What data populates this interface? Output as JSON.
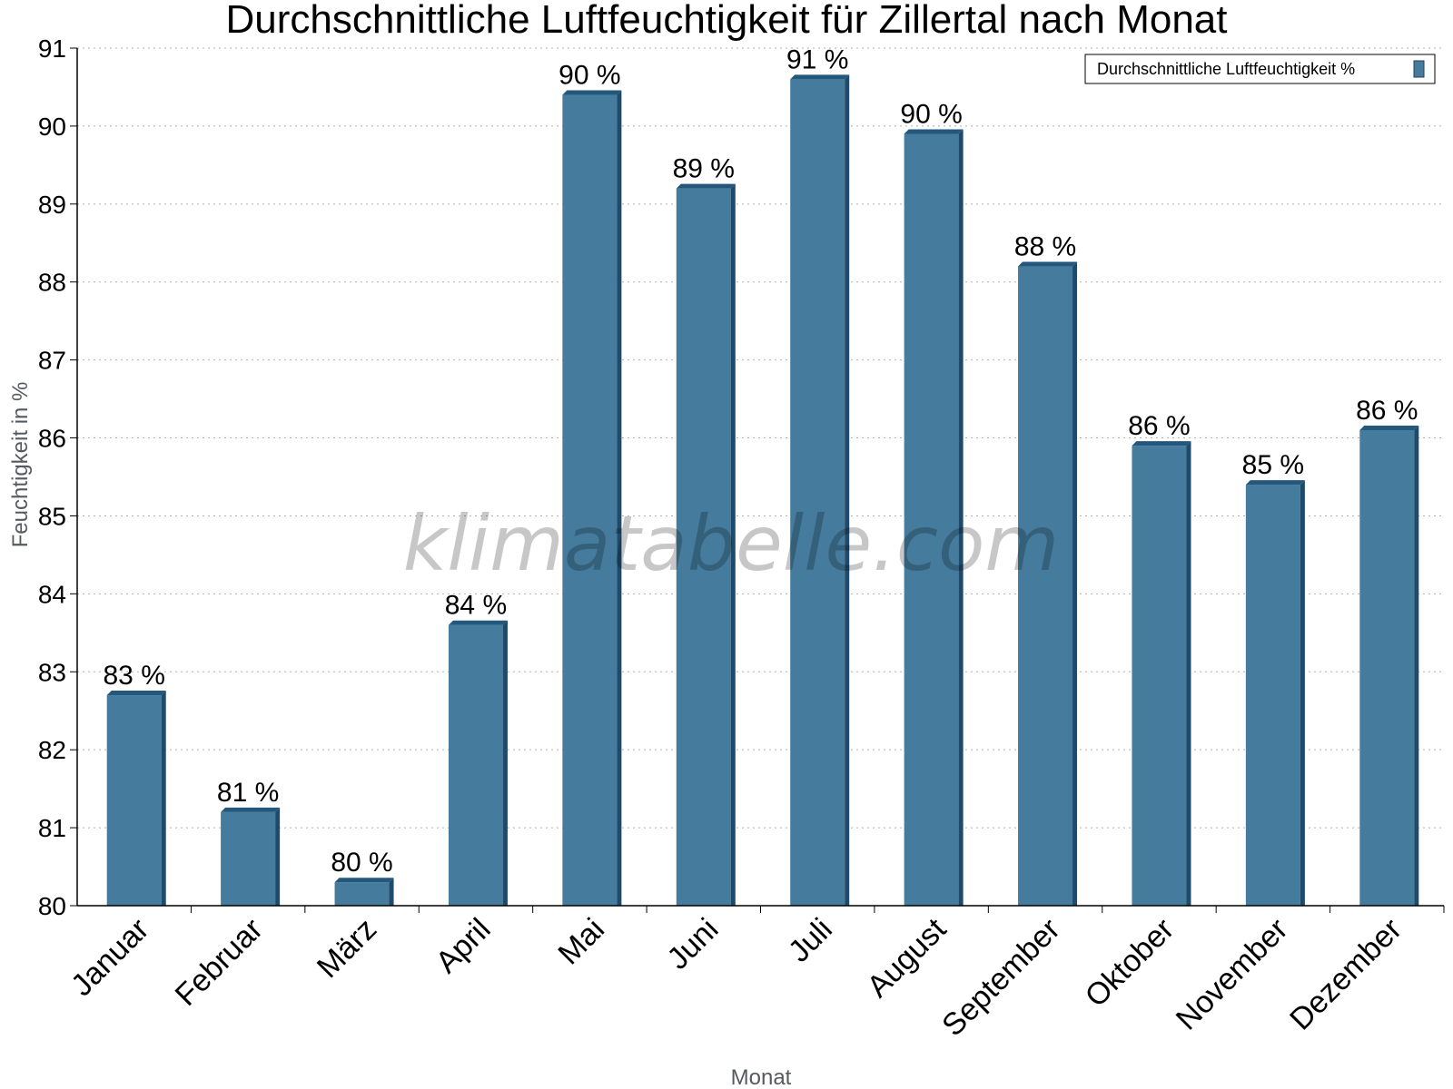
{
  "chart_data": {
    "type": "bar",
    "title": "Durchschnittliche Luftfeuchtigkeit für Zillertal nach Monat",
    "xlabel": "Monat",
    "ylabel": "Feuchtigkeit in %",
    "categories": [
      "Januar",
      "Februar",
      "März",
      "April",
      "Mai",
      "Juni",
      "Juli",
      "August",
      "September",
      "Oktober",
      "November",
      "Dezember"
    ],
    "series": [
      {
        "name": "Durchschnittliche Luftfeuchtigkeit %",
        "color": "#457b9d",
        "values": [
          82.7,
          81.2,
          80.3,
          83.6,
          90.4,
          89.2,
          90.6,
          89.9,
          88.2,
          85.9,
          85.4,
          86.1
        ],
        "labels": [
          "83 %",
          "81 %",
          "80 %",
          "84 %",
          "90 %",
          "89 %",
          "91 %",
          "90 %",
          "88 %",
          "86 %",
          "85 %",
          "86 %"
        ]
      }
    ],
    "ylim": [
      80,
      91
    ],
    "yticks": [
      80,
      81,
      82,
      83,
      84,
      85,
      86,
      87,
      88,
      89,
      90,
      91
    ],
    "grid": true,
    "legend_position": "top-right",
    "watermark": "klimatabelle.com"
  }
}
